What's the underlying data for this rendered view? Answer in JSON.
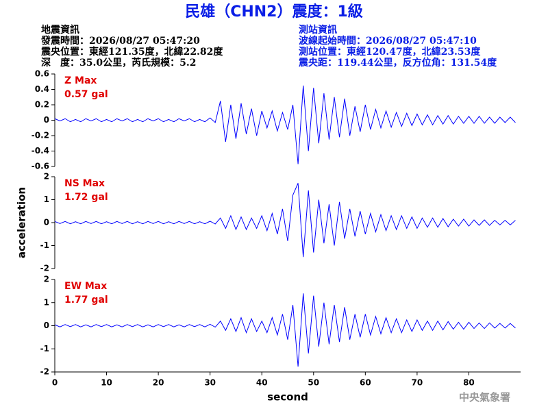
{
  "header": {
    "title": "民雄（CHN2）震度：1級",
    "left": [
      "地震資訊",
      "發震時間：2026/08/27 05:47:20",
      "震央位置：東經121.35度，北緯22.82度",
      "深　度：35.0公里，芮氏規模：5.2"
    ],
    "right": [
      "測站資訊",
      "波線起始時間：2026/08/27 05:47:10",
      "測站位置：東經120.47度，北緯23.53度",
      "震央距：119.44公里，反方位角：131.54度"
    ],
    "footer": "中央氣象署"
  },
  "chart_data": [
    {
      "type": "line",
      "annotation": [
        "Z Max",
        "0.57 gal"
      ],
      "annotation_color": "#e00000",
      "x": [
        0,
        1,
        2,
        3,
        4,
        5,
        6,
        7,
        8,
        9,
        10,
        11,
        12,
        13,
        14,
        15,
        16,
        17,
        18,
        19,
        20,
        21,
        22,
        23,
        24,
        25,
        26,
        27,
        28,
        29,
        30,
        31,
        32,
        33,
        34,
        35,
        36,
        37,
        38,
        39,
        40,
        41,
        42,
        43,
        44,
        45,
        46,
        47,
        48,
        49,
        50,
        51,
        52,
        53,
        54,
        55,
        56,
        57,
        58,
        59,
        60,
        61,
        62,
        63,
        64,
        65,
        66,
        67,
        68,
        69,
        70,
        71,
        72,
        73,
        74,
        75,
        76,
        77,
        78,
        79,
        80,
        81,
        82,
        83,
        84,
        85,
        86,
        87,
        88,
        89
      ],
      "series": [
        {
          "color": "#0000ff",
          "values": [
            0.02,
            -0.01,
            0.02,
            -0.02,
            0.01,
            -0.02,
            0.02,
            -0.01,
            0.02,
            -0.02,
            0.01,
            -0.02,
            0.02,
            -0.01,
            0.02,
            -0.02,
            0.01,
            -0.02,
            0.02,
            -0.01,
            0.02,
            -0.02,
            0.01,
            -0.02,
            0.02,
            -0.01,
            0.02,
            -0.02,
            0.01,
            -0.02,
            0.03,
            -0.03,
            0.25,
            -0.28,
            0.2,
            -0.24,
            0.22,
            -0.18,
            0.15,
            -0.2,
            0.12,
            -0.1,
            0.12,
            -0.14,
            0.1,
            -0.12,
            0.2,
            -0.57,
            0.45,
            -0.4,
            0.42,
            -0.3,
            0.35,
            -0.25,
            0.3,
            -0.22,
            0.28,
            -0.2,
            0.18,
            -0.15,
            0.2,
            -0.12,
            0.14,
            -0.1,
            0.12,
            -0.09,
            0.1,
            -0.08,
            0.09,
            -0.07,
            0.08,
            -0.06,
            0.07,
            -0.06,
            0.06,
            -0.05,
            0.06,
            -0.05,
            0.05,
            -0.04,
            0.05,
            -0.04,
            0.05,
            -0.04,
            0.04,
            -0.04,
            0.04,
            -0.03,
            0.04,
            -0.03
          ]
        }
      ],
      "xlim": [
        0,
        90
      ],
      "ylim": [
        -0.6,
        0.6
      ],
      "yticks": [
        0.6,
        0.4,
        0.2,
        0,
        -0.2,
        -0.4,
        -0.6
      ]
    },
    {
      "type": "line",
      "annotation": [
        "NS Max",
        "1.72 gal"
      ],
      "annotation_color": "#e00000",
      "ylabel": "acceleration",
      "x": [
        0,
        1,
        2,
        3,
        4,
        5,
        6,
        7,
        8,
        9,
        10,
        11,
        12,
        13,
        14,
        15,
        16,
        17,
        18,
        19,
        20,
        21,
        22,
        23,
        24,
        25,
        26,
        27,
        28,
        29,
        30,
        31,
        32,
        33,
        34,
        35,
        36,
        37,
        38,
        39,
        40,
        41,
        42,
        43,
        44,
        45,
        46,
        47,
        48,
        49,
        50,
        51,
        52,
        53,
        54,
        55,
        56,
        57,
        58,
        59,
        60,
        61,
        62,
        63,
        64,
        65,
        66,
        67,
        68,
        69,
        70,
        71,
        72,
        73,
        74,
        75,
        76,
        77,
        78,
        79,
        80,
        81,
        82,
        83,
        84,
        85,
        86,
        87,
        88,
        89
      ],
      "series": [
        {
          "color": "#0000ff",
          "values": [
            0.05,
            -0.04,
            0.05,
            -0.05,
            0.04,
            -0.05,
            0.05,
            -0.04,
            0.05,
            -0.05,
            0.04,
            -0.05,
            0.05,
            -0.04,
            0.05,
            -0.05,
            0.04,
            -0.05,
            0.05,
            -0.04,
            0.05,
            -0.05,
            0.04,
            -0.05,
            0.05,
            -0.04,
            0.05,
            -0.05,
            0.04,
            -0.05,
            0.06,
            -0.06,
            0.2,
            -0.25,
            0.3,
            -0.3,
            0.25,
            -0.3,
            0.2,
            -0.25,
            0.3,
            -0.35,
            0.4,
            -0.5,
            0.6,
            -0.8,
            1.2,
            1.72,
            -1.5,
            1.4,
            -1.3,
            1.0,
            -0.9,
            0.8,
            -1.0,
            0.9,
            -0.7,
            0.6,
            -0.6,
            0.5,
            -0.5,
            0.4,
            -0.4,
            0.35,
            -0.35,
            0.3,
            -0.3,
            0.3,
            -0.25,
            0.25,
            -0.25,
            0.2,
            -0.2,
            0.2,
            -0.2,
            0.18,
            -0.18,
            0.15,
            -0.15,
            0.15,
            -0.15,
            0.12,
            -0.12,
            0.12,
            -0.12,
            0.1,
            -0.1,
            0.1,
            -0.1,
            0.1
          ]
        }
      ],
      "xlim": [
        0,
        90
      ],
      "ylim": [
        -2,
        2
      ],
      "yticks": [
        2,
        1,
        0,
        -1,
        -2
      ]
    },
    {
      "type": "line",
      "annotation": [
        "EW Max",
        "1.77 gal"
      ],
      "annotation_color": "#e00000",
      "xlabel": "second",
      "x": [
        0,
        1,
        2,
        3,
        4,
        5,
        6,
        7,
        8,
        9,
        10,
        11,
        12,
        13,
        14,
        15,
        16,
        17,
        18,
        19,
        20,
        21,
        22,
        23,
        24,
        25,
        26,
        27,
        28,
        29,
        30,
        31,
        32,
        33,
        34,
        35,
        36,
        37,
        38,
        39,
        40,
        41,
        42,
        43,
        44,
        45,
        46,
        47,
        48,
        49,
        50,
        51,
        52,
        53,
        54,
        55,
        56,
        57,
        58,
        59,
        60,
        61,
        62,
        63,
        64,
        65,
        66,
        67,
        68,
        69,
        70,
        71,
        72,
        73,
        74,
        75,
        76,
        77,
        78,
        79,
        80,
        81,
        82,
        83,
        84,
        85,
        86,
        87,
        88,
        89
      ],
      "series": [
        {
          "color": "#0000ff",
          "values": [
            0.04,
            -0.05,
            0.05,
            -0.04,
            0.05,
            -0.05,
            0.04,
            -0.05,
            0.05,
            -0.04,
            0.05,
            -0.05,
            0.04,
            -0.05,
            0.05,
            -0.04,
            0.05,
            -0.05,
            0.04,
            -0.05,
            0.05,
            -0.04,
            0.05,
            -0.05,
            0.04,
            -0.05,
            0.05,
            -0.04,
            0.05,
            -0.05,
            0.06,
            -0.06,
            0.2,
            -0.2,
            0.3,
            -0.25,
            0.35,
            -0.3,
            0.3,
            -0.25,
            0.2,
            -0.3,
            0.35,
            -0.4,
            0.5,
            -0.6,
            0.9,
            -1.77,
            1.4,
            -1.2,
            1.3,
            -0.9,
            1.0,
            -0.8,
            0.9,
            -0.7,
            0.8,
            -0.6,
            0.5,
            -0.5,
            0.5,
            -0.4,
            0.4,
            -0.35,
            0.35,
            -0.3,
            0.3,
            -0.3,
            0.25,
            -0.25,
            0.25,
            -0.2,
            0.2,
            -0.2,
            0.2,
            -0.18,
            0.18,
            -0.15,
            0.15,
            -0.15,
            0.15,
            -0.12,
            0.12,
            -0.12,
            0.12,
            -0.1,
            0.1,
            -0.1,
            0.1,
            -0.1
          ]
        }
      ],
      "xlim": [
        0,
        90
      ],
      "ylim": [
        -2,
        2
      ],
      "yticks": [
        2,
        1,
        0,
        -1,
        -2
      ],
      "xticks": [
        0,
        10,
        20,
        30,
        40,
        50,
        60,
        70,
        80
      ]
    }
  ]
}
